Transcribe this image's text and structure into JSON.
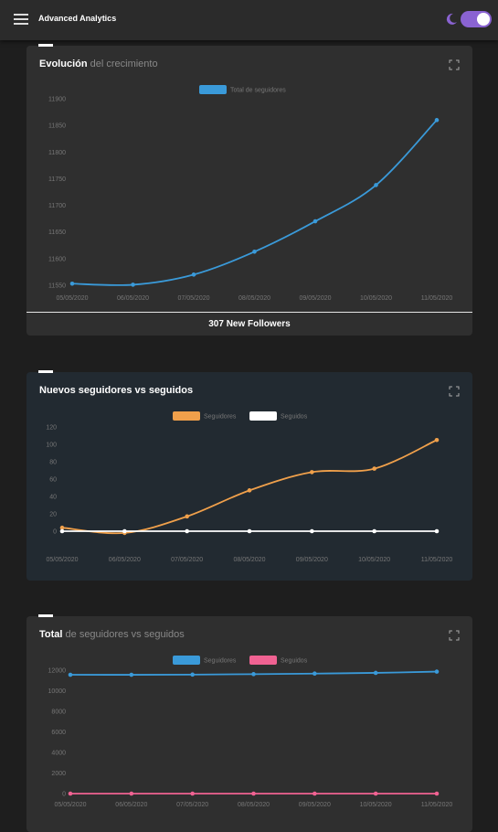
{
  "app": {
    "title": "Advanced Analytics",
    "dark_mode_on": true,
    "toggle_color": "#8a63d2"
  },
  "cards": [
    {
      "title_bold": "Evolución",
      "title_rest": " del crecimiento",
      "footer": "307 New Followers",
      "chart_data": {
        "type": "line",
        "x": [
          "05/05/2020",
          "06/05/2020",
          "07/05/2020",
          "08/05/2020",
          "09/05/2020",
          "10/05/2020",
          "11/05/2020"
        ],
        "y_ticks": [
          "11550",
          "11600",
          "11650",
          "11700",
          "11750",
          "11800",
          "11850",
          "11900"
        ],
        "ylim": [
          11550,
          11900
        ],
        "series": [
          {
            "name": "Total de seguidores",
            "color": "#3a9ad9",
            "values": [
              11553,
              11551,
              11570,
              11613,
              11670,
              11738,
              11860
            ]
          }
        ]
      }
    },
    {
      "title_bold": "Nuevos seguidores vs seguidos",
      "title_rest": "",
      "chart_data": {
        "type": "line",
        "x": [
          "05/05/2020",
          "06/05/2020",
          "07/05/2020",
          "08/05/2020",
          "09/05/2020",
          "10/05/2020",
          "11/05/2020"
        ],
        "y_ticks": [
          "0",
          "20",
          "40",
          "60",
          "80",
          "100",
          "120"
        ],
        "ylim": [
          0,
          120
        ],
        "series": [
          {
            "name": "Seguidores",
            "color": "#f0a04b",
            "values": [
              4,
              -2,
              17,
              47,
              68,
              72,
              105
            ]
          },
          {
            "name": "Seguidos",
            "color": "#ffffff",
            "values": [
              0,
              0,
              0,
              0,
              0,
              0,
              0
            ]
          }
        ]
      }
    },
    {
      "title_bold": "Total",
      "title_rest": " de seguidores vs seguidos",
      "chart_data": {
        "type": "line",
        "x": [
          "05/05/2020",
          "06/05/2020",
          "07/05/2020",
          "08/05/2020",
          "09/05/2020",
          "10/05/2020",
          "11/05/2020"
        ],
        "y_ticks": [
          "0",
          "2000",
          "4000",
          "6000",
          "8000",
          "10000",
          "12000"
        ],
        "ylim": [
          0,
          12000
        ],
        "series": [
          {
            "name": "Seguidores",
            "color": "#3a9ad9",
            "values": [
              11553,
              11551,
              11570,
              11613,
              11670,
              11738,
              11860
            ]
          },
          {
            "name": "Seguidos",
            "color": "#f06292",
            "values": [
              0,
              0,
              0,
              0,
              0,
              0,
              0
            ]
          }
        ]
      }
    }
  ]
}
